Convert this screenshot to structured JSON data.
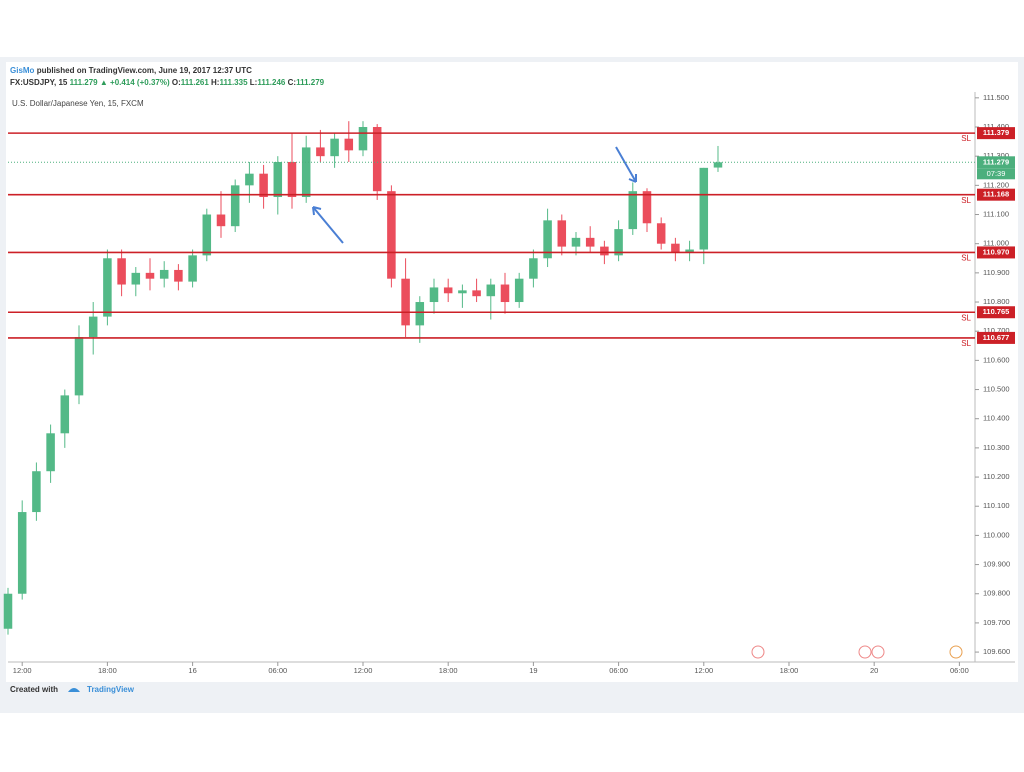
{
  "header": {
    "author": "GisMo",
    "published": "published on TradingView.com, June 19, 2017 12:37 UTC",
    "symbol": "FX:USDJPY, 15",
    "change": "▲ +0.414 (+0.37%)",
    "open_label": "O:",
    "high_label": "H:",
    "low_label": "L:",
    "close_label": "C:",
    "legend": "U.S. Dollar/Japanese Yen, 15, FXCM"
  },
  "footer": {
    "created": "Created with",
    "brand": "TradingView"
  },
  "chart_data": {
    "type": "candlestick",
    "up_color": "#53b987",
    "down_color": "#eb4d5c",
    "x": [
      -1,
      0,
      1,
      2,
      3,
      4,
      5,
      6,
      7,
      8,
      9,
      10,
      11,
      12,
      13,
      14,
      15,
      16,
      17,
      18,
      19,
      20,
      21,
      22,
      23,
      24,
      25,
      26,
      27,
      28,
      29,
      30,
      31,
      32,
      33,
      34,
      35,
      36,
      37,
      38,
      39,
      40,
      41,
      42,
      43,
      44,
      45,
      46,
      47,
      48,
      49
    ],
    "open": [
      109.68,
      109.8,
      110.08,
      110.22,
      110.35,
      110.48,
      110.68,
      110.75,
      110.95,
      110.86,
      110.9,
      110.88,
      110.91,
      110.87,
      110.96,
      111.1,
      111.06,
      111.2,
      111.24,
      111.16,
      111.28,
      111.16,
      111.33,
      111.3,
      111.36,
      111.32,
      111.4,
      111.18,
      110.88,
      110.72,
      110.8,
      110.85,
      110.83,
      110.84,
      110.82,
      110.86,
      110.8,
      110.88,
      110.95,
      111.08,
      110.99,
      111.02,
      110.99,
      110.96,
      111.05,
      111.18,
      111.07,
      111.0,
      110.97,
      110.98,
      111.261
    ],
    "high": [
      109.82,
      110.12,
      110.25,
      110.38,
      110.5,
      110.72,
      110.8,
      110.98,
      110.98,
      110.92,
      110.95,
      110.94,
      110.93,
      110.98,
      111.12,
      111.18,
      111.22,
      111.28,
      111.27,
      111.3,
      111.38,
      111.37,
      111.39,
      111.38,
      111.42,
      111.42,
      111.41,
      111.2,
      110.95,
      110.82,
      110.88,
      110.88,
      110.86,
      110.88,
      110.88,
      110.9,
      110.9,
      110.98,
      111.12,
      111.1,
      111.04,
      111.06,
      111.01,
      111.08,
      111.21,
      111.19,
      111.09,
      111.02,
      111.01,
      111.26,
      111.335
    ],
    "low": [
      109.66,
      109.78,
      110.05,
      110.18,
      110.3,
      110.45,
      110.62,
      110.72,
      110.82,
      110.82,
      110.84,
      110.85,
      110.84,
      110.85,
      110.94,
      111.02,
      111.04,
      111.14,
      111.12,
      111.1,
      111.12,
      111.14,
      111.28,
      111.26,
      111.28,
      111.3,
      111.15,
      110.85,
      110.68,
      110.66,
      110.76,
      110.8,
      110.78,
      110.8,
      110.74,
      110.76,
      110.78,
      110.85,
      110.92,
      110.96,
      110.96,
      110.97,
      110.93,
      110.94,
      111.03,
      111.04,
      110.98,
      110.94,
      110.94,
      110.93,
      111.246
    ],
    "close": [
      109.8,
      110.08,
      110.22,
      110.35,
      110.48,
      110.68,
      110.75,
      110.95,
      110.86,
      110.9,
      110.88,
      110.91,
      110.87,
      110.96,
      111.1,
      111.06,
      111.2,
      111.24,
      111.16,
      111.28,
      111.16,
      111.33,
      111.3,
      111.36,
      111.32,
      111.4,
      111.18,
      110.88,
      110.72,
      110.8,
      110.85,
      110.83,
      110.84,
      110.82,
      110.86,
      110.8,
      110.88,
      110.95,
      111.08,
      110.99,
      111.02,
      110.99,
      110.96,
      111.05,
      111.18,
      111.07,
      111.0,
      110.97,
      110.98,
      111.26,
      111.279
    ],
    "xlim": [
      -1,
      67.1
    ],
    "xticks": [
      {
        "value": 0,
        "label": "12:00"
      },
      {
        "value": 6,
        "label": "18:00"
      },
      {
        "value": 12,
        "label": "16"
      },
      {
        "value": 18,
        "label": "06:00"
      },
      {
        "value": 24,
        "label": "12:00"
      },
      {
        "value": 30,
        "label": "18:00"
      },
      {
        "value": 36,
        "label": "19"
      },
      {
        "value": 42,
        "label": "06:00"
      },
      {
        "value": 48,
        "label": "12:00"
      },
      {
        "value": 54,
        "label": "18:00"
      },
      {
        "value": 60,
        "label": "20"
      },
      {
        "value": 66,
        "label": "06:00"
      }
    ],
    "ylim": [
      109.566,
      111.52
    ],
    "yticks": [
      {
        "value": 109.6,
        "label": "109.600"
      },
      {
        "value": 109.7,
        "label": "109.700"
      },
      {
        "value": 109.8,
        "label": "109.800"
      },
      {
        "value": 109.9,
        "label": "109.900"
      },
      {
        "value": 110.0,
        "label": "110.000"
      },
      {
        "value": 110.1,
        "label": "110.100"
      },
      {
        "value": 110.2,
        "label": "110.200"
      },
      {
        "value": 110.3,
        "label": "110.300"
      },
      {
        "value": 110.4,
        "label": "110.400"
      },
      {
        "value": 110.5,
        "label": "110.500"
      },
      {
        "value": 110.6,
        "label": "110.600"
      },
      {
        "value": 110.7,
        "label": "110.700"
      },
      {
        "value": 110.8,
        "label": "110.800"
      },
      {
        "value": 110.9,
        "label": "110.900"
      },
      {
        "value": 111.0,
        "label": "111.000"
      },
      {
        "value": 111.1,
        "label": "111.100"
      },
      {
        "value": 111.2,
        "label": "111.200"
      },
      {
        "value": 111.3,
        "label": "111.300"
      },
      {
        "value": 111.4,
        "label": "111.400"
      },
      {
        "value": 111.5,
        "label": "111.500"
      }
    ],
    "levels": [
      {
        "value": 111.379,
        "value_label": "111.379",
        "note": "SL"
      },
      {
        "value": 111.168,
        "value_label": "111.168",
        "note": "SL"
      },
      {
        "value": 110.97,
        "value_label": "110.970",
        "note": "SL"
      },
      {
        "value": 110.765,
        "value_label": "110.765",
        "note": "SL"
      },
      {
        "value": 110.677,
        "value_label": "110.677",
        "note": "SL"
      }
    ],
    "level_color": "#cc2027",
    "last_price": {
      "value": 111.279,
      "countdown": "07:39",
      "color": "#4caf7d"
    }
  }
}
